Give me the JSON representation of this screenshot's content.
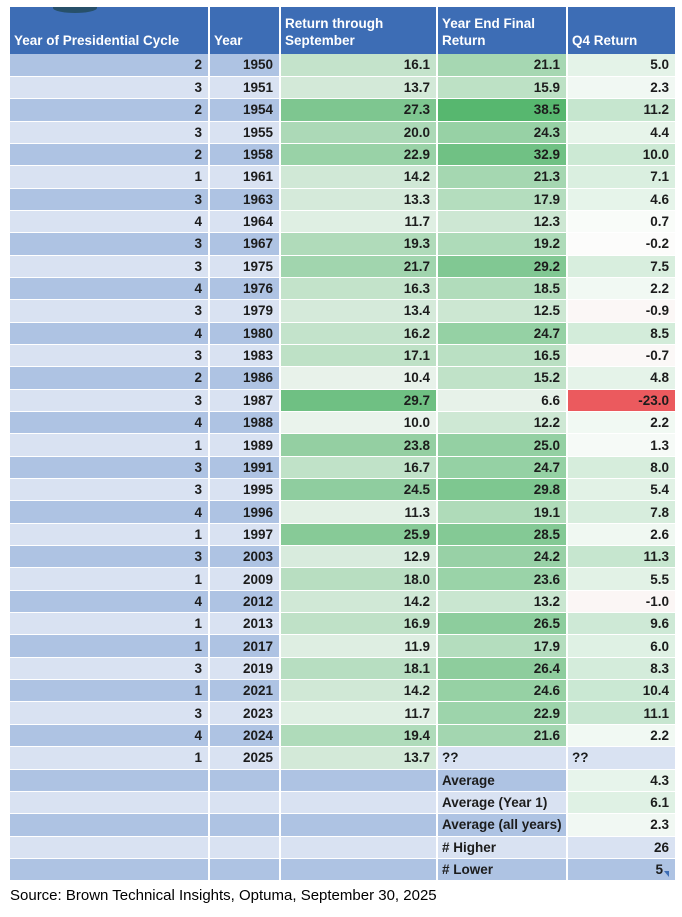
{
  "chart_data": {
    "type": "table",
    "columns": [
      "Year of Presidential Cycle",
      "Year",
      "Return through September",
      "Year End Final Return",
      "Q4 Return"
    ],
    "rows": [
      [
        2,
        1950,
        16.1,
        21.1,
        5.0
      ],
      [
        3,
        1951,
        13.7,
        15.9,
        2.3
      ],
      [
        2,
        1954,
        27.3,
        38.5,
        11.2
      ],
      [
        3,
        1955,
        20.0,
        24.3,
        4.4
      ],
      [
        2,
        1958,
        22.9,
        32.9,
        10.0
      ],
      [
        1,
        1961,
        14.2,
        21.3,
        7.1
      ],
      [
        3,
        1963,
        13.3,
        17.9,
        4.6
      ],
      [
        4,
        1964,
        11.7,
        12.3,
        0.7
      ],
      [
        3,
        1967,
        19.3,
        19.2,
        -0.2
      ],
      [
        3,
        1975,
        21.7,
        29.2,
        7.5
      ],
      [
        4,
        1976,
        16.3,
        18.5,
        2.2
      ],
      [
        3,
        1979,
        13.4,
        12.5,
        -0.9
      ],
      [
        4,
        1980,
        16.2,
        24.7,
        8.5
      ],
      [
        3,
        1983,
        17.1,
        16.5,
        -0.7
      ],
      [
        2,
        1986,
        10.4,
        15.2,
        4.8
      ],
      [
        3,
        1987,
        29.7,
        6.6,
        -23.0
      ],
      [
        4,
        1988,
        10.0,
        12.2,
        2.2
      ],
      [
        1,
        1989,
        23.8,
        25.0,
        1.3
      ],
      [
        3,
        1991,
        16.7,
        24.7,
        8.0
      ],
      [
        3,
        1995,
        24.5,
        29.8,
        5.4
      ],
      [
        4,
        1996,
        11.3,
        19.1,
        7.8
      ],
      [
        1,
        1997,
        25.9,
        28.5,
        2.6
      ],
      [
        3,
        2003,
        12.9,
        24.2,
        11.3
      ],
      [
        1,
        2009,
        18.0,
        23.6,
        5.5
      ],
      [
        4,
        2012,
        14.2,
        13.2,
        -1.0
      ],
      [
        1,
        2013,
        16.9,
        26.5,
        9.6
      ],
      [
        1,
        2017,
        11.9,
        17.9,
        6.0
      ],
      [
        3,
        2019,
        18.1,
        26.4,
        8.3
      ],
      [
        1,
        2021,
        14.2,
        24.6,
        10.4
      ],
      [
        3,
        2023,
        11.7,
        22.9,
        11.1
      ],
      [
        4,
        2024,
        19.4,
        21.6,
        2.2
      ],
      [
        1,
        2025,
        13.7,
        "??",
        "??"
      ]
    ],
    "summary_rows": [
      {
        "label": "Average",
        "value": "4.3",
        "scale": true
      },
      {
        "label": "Average (Year 1)",
        "value": "6.1",
        "scale": true
      },
      {
        "label": "Average (all years)",
        "value": "2.3",
        "scale": true
      },
      {
        "label": "# Higher",
        "value": "26",
        "scale": false
      },
      {
        "label": "# Lower",
        "value": "5",
        "scale": false,
        "marker": true
      }
    ],
    "legend_position": "none",
    "grid": false
  },
  "colors": {
    "header_bg": "#3D6DB5",
    "header_text": "#FFFFFF",
    "stripe_dark": "#AEC3E3",
    "stripe_light": "#D9E2F2",
    "text_dark": "#1C1C1C",
    "negative_red": "#EB5A5E",
    "accent_shape": "#27506A",
    "scale_sept": {
      "min": 10.0,
      "max": 29.7,
      "low": "#EAF3EC",
      "high": "#6FC083"
    },
    "scale_final": {
      "min": 6.6,
      "max": 38.5,
      "low": "#E7F2E9",
      "high": "#57B76F"
    },
    "scale_q4": {
      "min": -23.0,
      "max": 11.3,
      "low": "#EB5A5E",
      "mid": "#FCFDFC",
      "high": "#C6E6CF"
    }
  },
  "footer": {
    "text": "Source: Brown Technical Insights, Optuma, September 30, 2025"
  }
}
